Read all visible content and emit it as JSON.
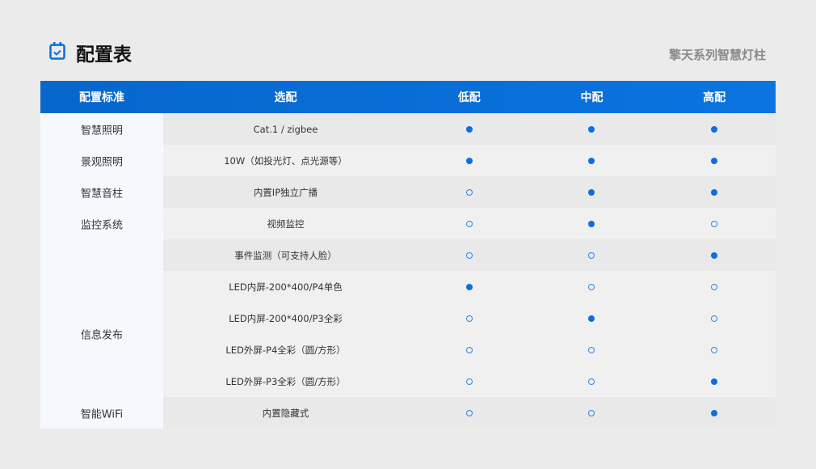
{
  "header": {
    "title": "配置表",
    "subtitle": "擎天系列智慧灯柱",
    "icon": "calendar-check-icon"
  },
  "accent": "#0b6fe0",
  "table": {
    "columns": [
      "配置标准",
      "选配",
      "低配",
      "中配",
      "高配"
    ],
    "categories": [
      "智慧照明",
      "景观照明",
      "智慧音柱",
      "监控系统",
      "信息发布",
      "智能WiFi"
    ],
    "rows": [
      {
        "option": "Cat.1 / zigbee",
        "low": true,
        "mid": true,
        "high": true
      },
      {
        "option": "10W（如投光灯、点光源等）",
        "low": true,
        "mid": true,
        "high": true
      },
      {
        "option": "内置IP独立广播",
        "low": false,
        "mid": true,
        "high": true
      },
      {
        "option": "视频监控",
        "low": false,
        "mid": true,
        "high": false
      },
      {
        "option": "事件监测（可支持人脸）",
        "low": false,
        "mid": false,
        "high": true
      },
      {
        "option": "LED内屏-200*400/P4单色",
        "low": true,
        "mid": false,
        "high": false
      },
      {
        "option": "LED内屏-200*400/P3全彩",
        "low": false,
        "mid": true,
        "high": false
      },
      {
        "option": "LED外屏-P4全彩（圆/方形）",
        "low": false,
        "mid": false,
        "high": false
      },
      {
        "option": "LED外屏-P3全彩（圆/方形）",
        "low": false,
        "mid": false,
        "high": true
      },
      {
        "option": "内置隐藏式",
        "low": false,
        "mid": false,
        "high": true
      }
    ]
  }
}
